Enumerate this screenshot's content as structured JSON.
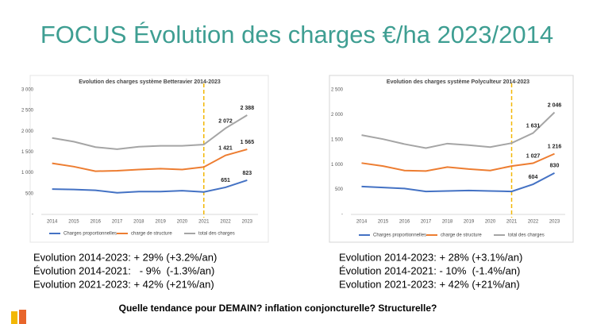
{
  "slide": {
    "title": "FOCUS Évolution des charges €/ha 2023/2014",
    "left_notes": [
      "Evolution 2014-2023: + 29% (+3.2%/an)",
      "Évolution 2014-2021:   - 9%  (-1.3%/an)",
      "Evolution 2021-2023: + 42% (+21%/an)"
    ],
    "right_notes": [
      "Evolution 2014-2023: + 28% (+3.1%/an)",
      "Évolution 2014-2021: - 10%  (-1.4%/an)",
      "Evolution 2021-2023: + 42% (+21%/an)"
    ],
    "question": "Quelle tendance pour DEMAIN? inflation conjoncturelle? Structurelle?"
  },
  "chart_data": [
    {
      "type": "line",
      "title": "Evolution des charges système Betteravier 2014-2023",
      "categories": [
        "2014",
        "2015",
        "2016",
        "2017",
        "2018",
        "2019",
        "2020",
        "2021",
        "2022",
        "2023"
      ],
      "ylim": [
        0,
        3000
      ],
      "yticks": [
        {
          "value": 0,
          "label": "-"
        },
        500,
        {
          "value": 1000,
          "label": "1 000"
        },
        {
          "value": 1500,
          "label": "1 500"
        },
        {
          "value": 2000,
          "label": "2 000"
        },
        {
          "value": 2500,
          "label": "2 500"
        },
        {
          "value": 3000,
          "label": "3 000"
        }
      ],
      "vline": "2021",
      "vline_color": "#f2b705",
      "series": [
        {
          "name": "Charges proportionnelles",
          "color": "#4472c4",
          "values": [
            610,
            600,
            580,
            520,
            550,
            550,
            570,
            540,
            651,
            823
          ],
          "value_labels": [
            null,
            null,
            null,
            null,
            null,
            null,
            null,
            null,
            "651",
            "823"
          ]
        },
        {
          "name": "charge de structure",
          "color": "#ed7d31",
          "values": [
            1230,
            1150,
            1040,
            1050,
            1080,
            1100,
            1080,
            1140,
            1421,
            1565
          ],
          "value_labels": [
            null,
            null,
            null,
            null,
            null,
            null,
            null,
            null,
            "1 421",
            "1 565"
          ]
        },
        {
          "name": "total des charges",
          "color": "#a5a5a5",
          "values": [
            1840,
            1750,
            1620,
            1570,
            1630,
            1650,
            1650,
            1680,
            2072,
            2388
          ],
          "value_labels": [
            null,
            null,
            null,
            null,
            null,
            null,
            null,
            null,
            "2 072",
            "2 388"
          ]
        }
      ]
    },
    {
      "type": "line",
      "title": "Evolution des charges système Polyculteur 2014-2023",
      "categories": [
        "2014",
        "2015",
        "2016",
        "2017",
        "2018",
        "2019",
        "2020",
        "2021",
        "2022",
        "2023"
      ],
      "ylim": [
        0,
        2500
      ],
      "yticks": [
        {
          "value": 0,
          "label": "-"
        },
        500,
        {
          "value": 1000,
          "label": "1 000"
        },
        {
          "value": 1500,
          "label": "1 500"
        },
        {
          "value": 2000,
          "label": "2 000"
        },
        {
          "value": 2500,
          "label": "2 500"
        }
      ],
      "vline": "2021",
      "vline_color": "#f2b705",
      "series": [
        {
          "name": "Charges proportionnelles",
          "color": "#4472c4",
          "values": [
            560,
            540,
            520,
            460,
            470,
            480,
            470,
            460,
            604,
            830
          ],
          "value_labels": [
            null,
            null,
            null,
            null,
            null,
            null,
            null,
            null,
            "604",
            "830"
          ]
        },
        {
          "name": "charge de structure",
          "color": "#ed7d31",
          "values": [
            1030,
            970,
            880,
            870,
            950,
            910,
            880,
            970,
            1027,
            1216
          ],
          "value_labels": [
            null,
            null,
            null,
            null,
            null,
            null,
            null,
            null,
            "1 027",
            "1 216"
          ]
        },
        {
          "name": "total des charges",
          "color": "#a5a5a5",
          "values": [
            1590,
            1510,
            1410,
            1330,
            1420,
            1390,
            1350,
            1430,
            1631,
            2046
          ],
          "value_labels": [
            null,
            null,
            null,
            null,
            null,
            null,
            null,
            null,
            "1 631",
            "2 046"
          ]
        }
      ]
    }
  ]
}
